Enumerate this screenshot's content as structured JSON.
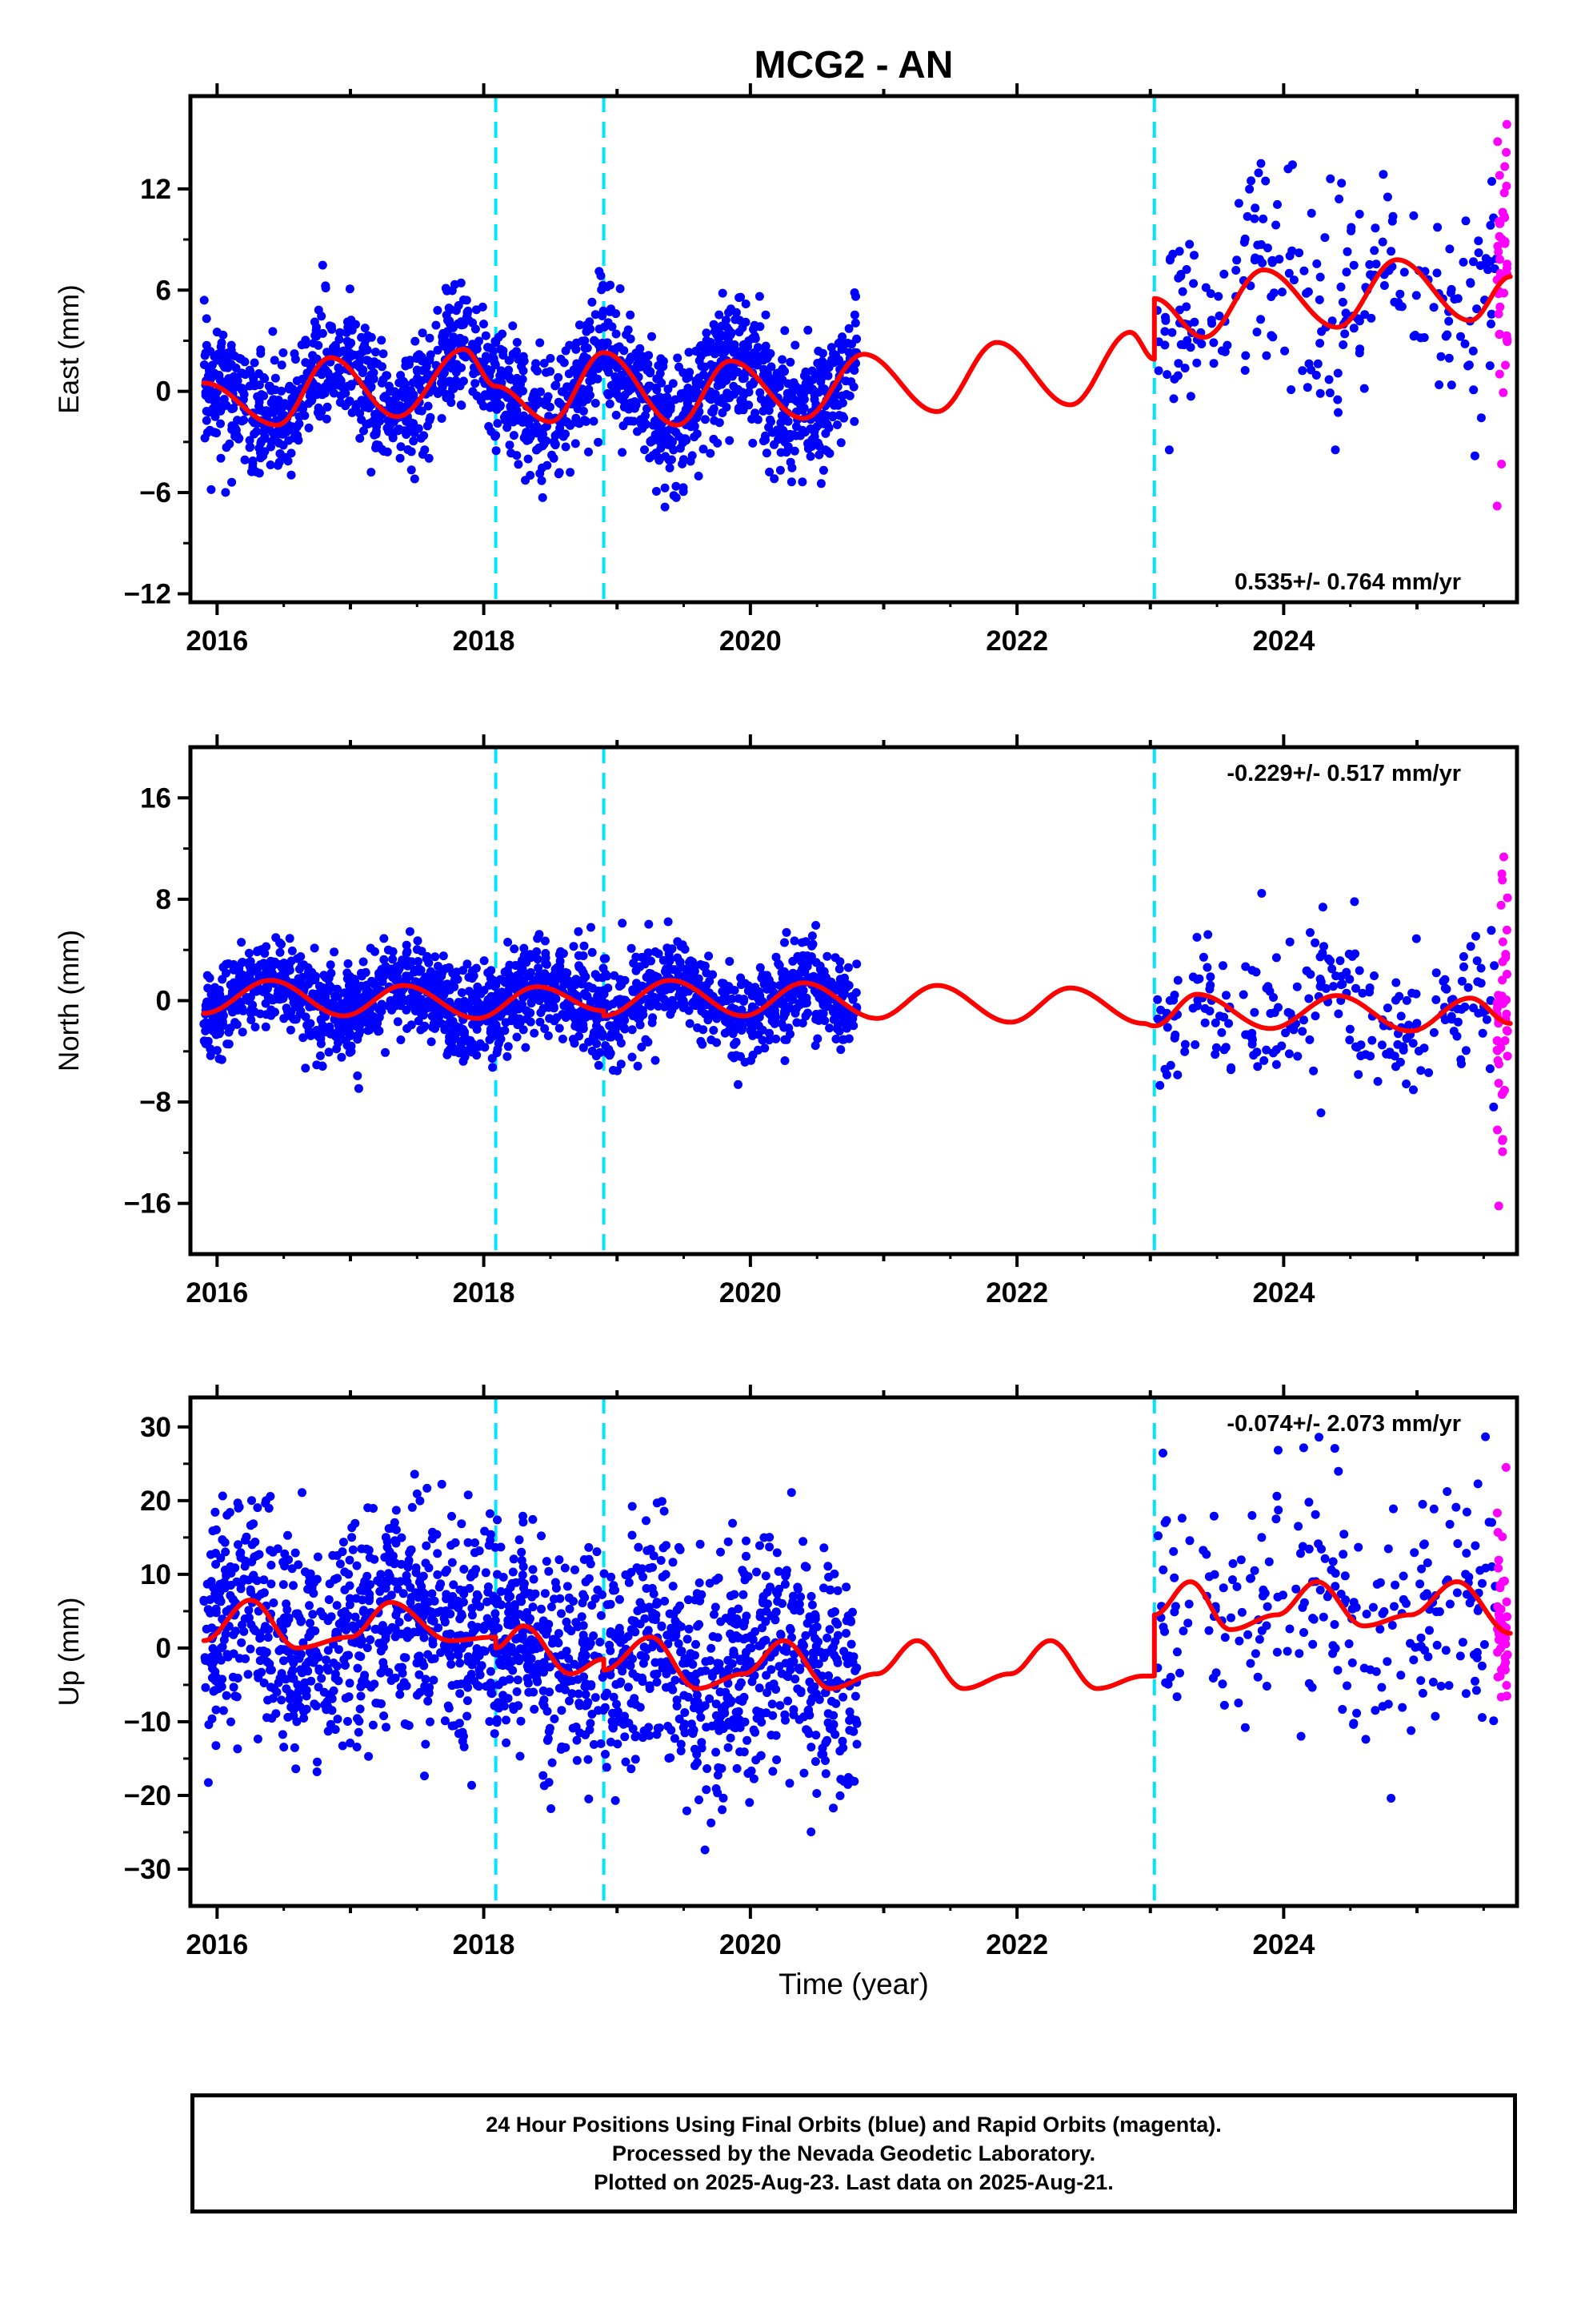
{
  "title": "MCG2 - AN",
  "xlabel": "Time (year)",
  "caption": [
    "24 Hour Positions Using Final Orbits (blue) and Rapid Orbits (magenta).",
    "Processed by the Nevada Geodetic Laboratory.",
    "Plotted on 2025-Aug-23. Last data on 2025-Aug-21."
  ],
  "colors": {
    "final": "#0000ff",
    "rapid": "#ff00ff",
    "model": "#ff0000",
    "steps": "#00e5ff",
    "frame": "#000000"
  },
  "chart_data": [
    {
      "type": "scatter",
      "component": "East",
      "ylabel": "East (mm)",
      "xlim": [
        2015.8,
        2025.75
      ],
      "ylim": [
        -12.5,
        17.5
      ],
      "yticks": [
        -12,
        -6,
        0,
        6,
        12
      ],
      "xticks": [
        2016,
        2018,
        2020,
        2022,
        2024
      ],
      "rate": "0.535+/- 0.764 mm/yr",
      "rate_position": "bottom-right",
      "step_epochs": [
        2018.09,
        2018.9,
        2023.03
      ],
      "model_anchors": [
        [
          2015.9,
          0.5
        ],
        [
          2016.45,
          -2.0
        ],
        [
          2016.85,
          2.0
        ],
        [
          2017.35,
          -1.5
        ],
        [
          2017.85,
          2.5
        ],
        [
          2018.09,
          0.3
        ],
        [
          2018.5,
          -1.8
        ],
        [
          2018.9,
          2.3
        ],
        [
          2019.45,
          -2.0
        ],
        [
          2019.85,
          1.8
        ],
        [
          2020.4,
          -1.6
        ],
        [
          2020.85,
          2.2
        ],
        [
          2021.4,
          -1.2
        ],
        [
          2021.85,
          2.9
        ],
        [
          2022.4,
          -0.8
        ],
        [
          2022.85,
          3.5
        ],
        [
          2023.03,
          1.9
        ],
        [
          2023.03,
          5.5
        ],
        [
          2023.4,
          3.2
        ],
        [
          2023.85,
          7.2
        ],
        [
          2024.4,
          3.8
        ],
        [
          2024.85,
          7.8
        ],
        [
          2025.4,
          4.2
        ],
        [
          2025.7,
          6.8
        ]
      ],
      "final_points": {
        "color": "blue",
        "dense_range": [
          2015.9,
          2020.8
        ],
        "dense_count": 1750,
        "sparse_range": [
          2023.05,
          2025.6
        ],
        "sparse_count": 240,
        "scatter_sd": [
          1.8,
          3.5
        ]
      },
      "rapid_points": {
        "color": "magenta",
        "range": [
          2025.6,
          2025.68
        ],
        "count": 45,
        "values_range": [
          -6.8,
          14.8
        ]
      }
    },
    {
      "type": "scatter",
      "component": "North",
      "ylabel": "North (mm)",
      "xlim": [
        2015.8,
        2025.75
      ],
      "ylim": [
        -20,
        20
      ],
      "yticks": [
        -16,
        -8,
        0,
        8,
        16
      ],
      "xticks": [
        2016,
        2018,
        2020,
        2022,
        2024
      ],
      "rate": "-0.229+/- 0.517 mm/yr",
      "rate_position": "top-right",
      "step_epochs": [
        2018.09,
        2018.9,
        2023.03
      ],
      "model_anchors": [
        [
          2015.9,
          -1.0
        ],
        [
          2016.4,
          1.6
        ],
        [
          2016.95,
          -1.2
        ],
        [
          2017.4,
          1.2
        ],
        [
          2017.95,
          -1.4
        ],
        [
          2018.4,
          1.1
        ],
        [
          2018.9,
          -0.8
        ],
        [
          2018.9,
          -1.2
        ],
        [
          2019.4,
          1.6
        ],
        [
          2019.95,
          -1.2
        ],
        [
          2020.4,
          1.4
        ],
        [
          2020.95,
          -1.4
        ],
        [
          2021.4,
          1.2
        ],
        [
          2021.95,
          -1.7
        ],
        [
          2022.4,
          1.0
        ],
        [
          2022.95,
          -1.8
        ],
        [
          2023.03,
          -2.0
        ],
        [
          2023.35,
          0.5
        ],
        [
          2023.9,
          -2.2
        ],
        [
          2024.4,
          0.4
        ],
        [
          2024.95,
          -2.4
        ],
        [
          2025.4,
          0.2
        ],
        [
          2025.7,
          -1.8
        ]
      ],
      "final_points": {
        "color": "blue",
        "dense_range": [
          2015.9,
          2020.8
        ],
        "dense_count": 1750,
        "sparse_range": [
          2023.05,
          2025.6
        ],
        "sparse_count": 240,
        "scatter_sd": [
          1.8,
          3.2
        ]
      },
      "rapid_points": {
        "color": "magenta",
        "range": [
          2025.6,
          2025.68
        ],
        "count": 45,
        "values_range": [
          -16.2,
          10.0
        ]
      }
    },
    {
      "type": "scatter",
      "component": "Up",
      "ylabel": "Up (mm)",
      "xlim": [
        2015.8,
        2025.75
      ],
      "ylim": [
        -35,
        34
      ],
      "yticks": [
        -30,
        -20,
        -10,
        0,
        10,
        20,
        30
      ],
      "xticks": [
        2016,
        2018,
        2020,
        2022,
        2024
      ],
      "rate": "-0.074+/- 2.073 mm/yr",
      "rate_position": "top-right",
      "step_epochs": [
        2018.09,
        2018.9,
        2023.03
      ],
      "model_anchors": [
        [
          2015.9,
          1.0
        ],
        [
          2016.25,
          6.5
        ],
        [
          2016.6,
          0.0
        ],
        [
          2017.0,
          1.5
        ],
        [
          2017.3,
          6.2
        ],
        [
          2017.75,
          1.0
        ],
        [
          2018.09,
          1.5
        ],
        [
          2018.09,
          0.0
        ],
        [
          2018.3,
          3.0
        ],
        [
          2018.65,
          -3.5
        ],
        [
          2018.9,
          -1.5
        ],
        [
          2018.9,
          -3.0
        ],
        [
          2019.25,
          1.5
        ],
        [
          2019.6,
          -5.5
        ],
        [
          2019.95,
          -3.5
        ],
        [
          2020.25,
          1.0
        ],
        [
          2020.6,
          -5.5
        ],
        [
          2020.95,
          -3.5
        ],
        [
          2021.25,
          1.0
        ],
        [
          2021.6,
          -5.5
        ],
        [
          2021.95,
          -3.5
        ],
        [
          2022.25,
          1.0
        ],
        [
          2022.6,
          -5.5
        ],
        [
          2022.95,
          -3.8
        ],
        [
          2023.03,
          -3.8
        ],
        [
          2023.03,
          4.5
        ],
        [
          2023.3,
          9.0
        ],
        [
          2023.6,
          2.5
        ],
        [
          2023.95,
          4.5
        ],
        [
          2024.25,
          9.0
        ],
        [
          2024.6,
          3.0
        ],
        [
          2024.95,
          4.5
        ],
        [
          2025.3,
          9.0
        ],
        [
          2025.7,
          2.0
        ]
      ],
      "final_points": {
        "color": "blue",
        "dense_range": [
          2015.9,
          2020.8
        ],
        "dense_count": 1750,
        "sparse_range": [
          2023.05,
          2025.6
        ],
        "sparse_count": 240,
        "scatter_sd": [
          7.5,
          9.0
        ]
      },
      "rapid_points": {
        "color": "magenta",
        "range": [
          2025.6,
          2025.68
        ],
        "count": 45,
        "values_range": [
          -6.5,
          24.5
        ]
      }
    }
  ]
}
